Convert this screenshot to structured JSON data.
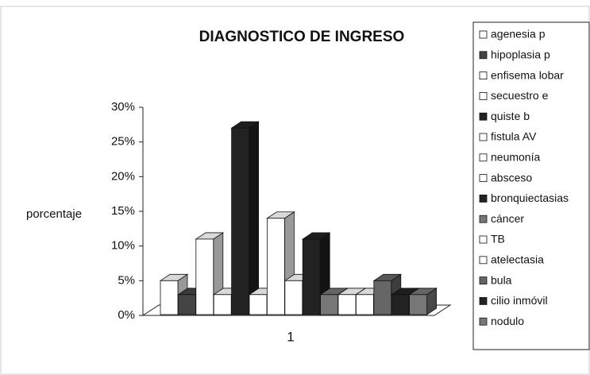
{
  "chart_data": {
    "type": "bar3d",
    "title": "DIAGNOSTICO DE INGRESO",
    "ylabel": "porcentaje",
    "categories": [
      "1"
    ],
    "ylim": [
      0,
      30
    ],
    "yticks": [
      {
        "value": 0,
        "label": "0%"
      },
      {
        "value": 5,
        "label": "5%"
      },
      {
        "value": 10,
        "label": "10%"
      },
      {
        "value": 15,
        "label": "15%"
      },
      {
        "value": 20,
        "label": "20%"
      },
      {
        "value": 25,
        "label": "25%"
      },
      {
        "value": 30,
        "label": "30%"
      }
    ],
    "legend": "right",
    "series": [
      {
        "name": "agenesia p",
        "color": "#ffffff",
        "values": [
          5
        ]
      },
      {
        "name": "hipoplasia p",
        "color": "#444444",
        "values": [
          3
        ]
      },
      {
        "name": "enfisema lobar",
        "color": "#ffffff",
        "values": [
          11
        ]
      },
      {
        "name": "secuestro e",
        "color": "#ffffff",
        "values": [
          3
        ]
      },
      {
        "name": "quiste b",
        "color": "#222222",
        "values": [
          27
        ]
      },
      {
        "name": "fistula AV",
        "color": "#ffffff",
        "values": [
          3
        ]
      },
      {
        "name": "neumonía",
        "color": "#ffffff",
        "values": [
          14
        ]
      },
      {
        "name": "absceso",
        "color": "#ffffff",
        "values": [
          5
        ]
      },
      {
        "name": "bronquiectasias",
        "color": "#222222",
        "values": [
          11
        ]
      },
      {
        "name": "cáncer",
        "color": "#777777",
        "values": [
          3
        ]
      },
      {
        "name": "TB",
        "color": "#ffffff",
        "values": [
          3
        ]
      },
      {
        "name": "atelectasia",
        "color": "#ffffff",
        "values": [
          3
        ]
      },
      {
        "name": "bula",
        "color": "#666666",
        "values": [
          5
        ]
      },
      {
        "name": "cilio inmóvil",
        "color": "#222222",
        "values": [
          3
        ]
      },
      {
        "name": "nodulo",
        "color": "#777777",
        "values": [
          3
        ]
      }
    ]
  }
}
